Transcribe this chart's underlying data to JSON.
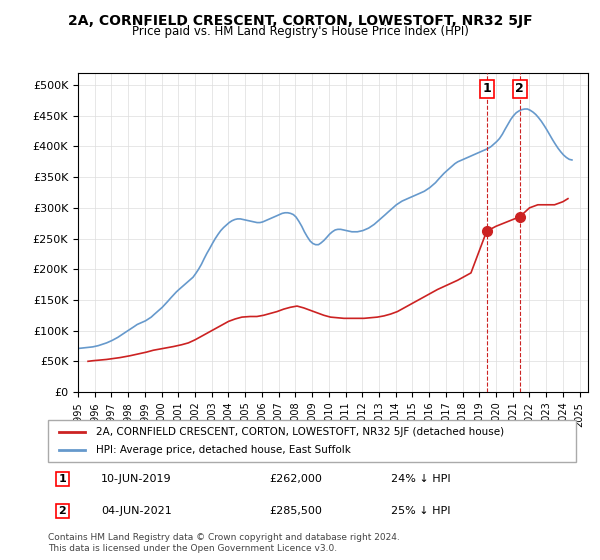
{
  "title": "2A, CORNFIELD CRESCENT, CORTON, LOWESTOFT, NR32 5JF",
  "subtitle": "Price paid vs. HM Land Registry's House Price Index (HPI)",
  "ylabel": "",
  "xlim_left": 1995.0,
  "xlim_right": 2025.5,
  "ylim_bottom": 0,
  "ylim_top": 520000,
  "yticks": [
    0,
    50000,
    100000,
    150000,
    200000,
    250000,
    300000,
    350000,
    400000,
    450000,
    500000
  ],
  "ytick_labels": [
    "£0",
    "£50K",
    "£100K",
    "£150K",
    "£200K",
    "£250K",
    "£300K",
    "£350K",
    "£400K",
    "£450K",
    "£500K"
  ],
  "xtick_years": [
    1995,
    1996,
    1997,
    1998,
    1999,
    2000,
    2001,
    2002,
    2003,
    2004,
    2005,
    2006,
    2007,
    2008,
    2009,
    2010,
    2011,
    2012,
    2013,
    2014,
    2015,
    2016,
    2017,
    2018,
    2019,
    2020,
    2021,
    2022,
    2023,
    2024,
    2025
  ],
  "hpi_color": "#6699cc",
  "property_color": "#cc2222",
  "marker_color": "#cc2222",
  "legend_box_color": "#ffffff",
  "sale1_x": 2019.44,
  "sale1_y": 262000,
  "sale1_label": "1",
  "sale2_x": 2021.42,
  "sale2_y": 285500,
  "sale2_label": "2",
  "annotation1": "10-JUN-2019    £262,000    24% ↓ HPI",
  "annotation2": "04-JUN-2021    £285,500    25% ↓ HPI",
  "footer": "Contains HM Land Registry data © Crown copyright and database right 2024.\nThis data is licensed under the Open Government Licence v3.0.",
  "legend_line1": "2A, CORNFIELD CRESCENT, CORTON, LOWESTOFT, NR32 5JF (detached house)",
  "legend_line2": "HPI: Average price, detached house, East Suffolk",
  "hpi_data_x": [
    1995.04,
    1995.21,
    1995.38,
    1995.54,
    1995.71,
    1995.88,
    1996.04,
    1996.21,
    1996.38,
    1996.54,
    1996.71,
    1996.88,
    1997.04,
    1997.21,
    1997.38,
    1997.54,
    1997.71,
    1997.88,
    1998.04,
    1998.21,
    1998.38,
    1998.54,
    1998.71,
    1998.88,
    1999.04,
    1999.21,
    1999.38,
    1999.54,
    1999.71,
    1999.88,
    2000.04,
    2000.21,
    2000.38,
    2000.54,
    2000.71,
    2000.88,
    2001.04,
    2001.21,
    2001.38,
    2001.54,
    2001.71,
    2001.88,
    2002.04,
    2002.21,
    2002.38,
    2002.54,
    2002.71,
    2002.88,
    2003.04,
    2003.21,
    2003.38,
    2003.54,
    2003.71,
    2003.88,
    2004.04,
    2004.21,
    2004.38,
    2004.54,
    2004.71,
    2004.88,
    2005.04,
    2005.21,
    2005.38,
    2005.54,
    2005.71,
    2005.88,
    2006.04,
    2006.21,
    2006.38,
    2006.54,
    2006.71,
    2006.88,
    2007.04,
    2007.21,
    2007.38,
    2007.54,
    2007.71,
    2007.88,
    2008.04,
    2008.21,
    2008.38,
    2008.54,
    2008.71,
    2008.88,
    2009.04,
    2009.21,
    2009.38,
    2009.54,
    2009.71,
    2009.88,
    2010.04,
    2010.21,
    2010.38,
    2010.54,
    2010.71,
    2010.88,
    2011.04,
    2011.21,
    2011.38,
    2011.54,
    2011.71,
    2011.88,
    2012.04,
    2012.21,
    2012.38,
    2012.54,
    2012.71,
    2012.88,
    2013.04,
    2013.21,
    2013.38,
    2013.54,
    2013.71,
    2013.88,
    2014.04,
    2014.21,
    2014.38,
    2014.54,
    2014.71,
    2014.88,
    2015.04,
    2015.21,
    2015.38,
    2015.54,
    2015.71,
    2015.88,
    2016.04,
    2016.21,
    2016.38,
    2016.54,
    2016.71,
    2016.88,
    2017.04,
    2017.21,
    2017.38,
    2017.54,
    2017.71,
    2017.88,
    2018.04,
    2018.21,
    2018.38,
    2018.54,
    2018.71,
    2018.88,
    2019.04,
    2019.21,
    2019.38,
    2019.54,
    2019.71,
    2019.88,
    2020.04,
    2020.21,
    2020.38,
    2020.54,
    2020.71,
    2020.88,
    2021.04,
    2021.21,
    2021.38,
    2021.54,
    2021.71,
    2021.88,
    2022.04,
    2022.21,
    2022.38,
    2022.54,
    2022.71,
    2022.88,
    2023.04,
    2023.21,
    2023.38,
    2023.54,
    2023.71,
    2023.88,
    2024.04,
    2024.21,
    2024.38,
    2024.54
  ],
  "hpi_data_y": [
    71000,
    71500,
    72000,
    72500,
    73000,
    73500,
    74500,
    75500,
    77000,
    78500,
    80000,
    82000,
    84000,
    86500,
    89000,
    92000,
    95000,
    98000,
    101000,
    104000,
    107000,
    110000,
    112000,
    114000,
    116000,
    119000,
    122000,
    126000,
    130000,
    134000,
    138000,
    143000,
    148000,
    153000,
    158000,
    163000,
    167000,
    171000,
    175000,
    179000,
    183000,
    187000,
    193000,
    200000,
    208000,
    217000,
    226000,
    234000,
    242000,
    250000,
    257000,
    263000,
    268000,
    272000,
    276000,
    279000,
    281000,
    282000,
    282000,
    281000,
    280000,
    279000,
    278000,
    277000,
    276000,
    276000,
    277000,
    279000,
    281000,
    283000,
    285000,
    287000,
    289000,
    291000,
    292000,
    292000,
    291000,
    289000,
    285000,
    278000,
    270000,
    261000,
    253000,
    246000,
    242000,
    240000,
    240000,
    243000,
    247000,
    252000,
    257000,
    261000,
    264000,
    265000,
    265000,
    264000,
    263000,
    262000,
    261000,
    261000,
    261000,
    262000,
    263000,
    265000,
    267000,
    270000,
    273000,
    277000,
    281000,
    285000,
    289000,
    293000,
    297000,
    301000,
    305000,
    308000,
    311000,
    313000,
    315000,
    317000,
    319000,
    321000,
    323000,
    325000,
    327000,
    330000,
    333000,
    337000,
    341000,
    346000,
    351000,
    356000,
    360000,
    364000,
    368000,
    372000,
    375000,
    377000,
    379000,
    381000,
    383000,
    385000,
    387000,
    389000,
    391000,
    393000,
    395000,
    397000,
    400000,
    404000,
    408000,
    413000,
    420000,
    428000,
    436000,
    444000,
    450000,
    455000,
    458000,
    460000,
    461000,
    461000,
    459000,
    456000,
    452000,
    447000,
    441000,
    434000,
    427000,
    419000,
    411000,
    404000,
    397000,
    391000,
    386000,
    382000,
    379000,
    378000
  ],
  "property_data_x": [
    1995.6,
    1995.9,
    1996.3,
    1996.7,
    1997.5,
    1998.1,
    1998.6,
    1999.1,
    1999.5,
    1999.9,
    2000.3,
    2000.7,
    2001.2,
    2001.6,
    2002.0,
    2002.4,
    2002.8,
    2003.2,
    2003.6,
    2004.0,
    2004.4,
    2004.8,
    2005.3,
    2005.7,
    2006.1,
    2006.5,
    2006.9,
    2007.3,
    2007.7,
    2008.1,
    2008.5,
    2008.9,
    2009.3,
    2009.7,
    2010.1,
    2010.5,
    2010.9,
    2011.3,
    2011.7,
    2012.1,
    2012.5,
    2012.9,
    2013.3,
    2013.7,
    2014.1,
    2014.5,
    2014.9,
    2015.3,
    2015.7,
    2016.1,
    2016.5,
    2016.9,
    2017.3,
    2017.7,
    2018.1,
    2018.5,
    2019.44,
    2020.0,
    2021.42,
    2022.0,
    2022.5,
    2023.0,
    2023.5,
    2024.0,
    2024.3
  ],
  "property_data_y": [
    50000,
    51000,
    52000,
    53000,
    56000,
    59000,
    62000,
    65000,
    68000,
    70000,
    72000,
    74000,
    77000,
    80000,
    85000,
    91000,
    97000,
    103000,
    109000,
    115000,
    119000,
    122000,
    123000,
    123000,
    125000,
    128000,
    131000,
    135000,
    138000,
    140000,
    137000,
    133000,
    129000,
    125000,
    122000,
    121000,
    120000,
    120000,
    120000,
    120000,
    121000,
    122000,
    124000,
    127000,
    131000,
    137000,
    143000,
    149000,
    155000,
    161000,
    167000,
    172000,
    177000,
    182000,
    188000,
    194000,
    262000,
    270000,
    285500,
    300000,
    305000,
    305000,
    305000,
    310000,
    315000
  ]
}
